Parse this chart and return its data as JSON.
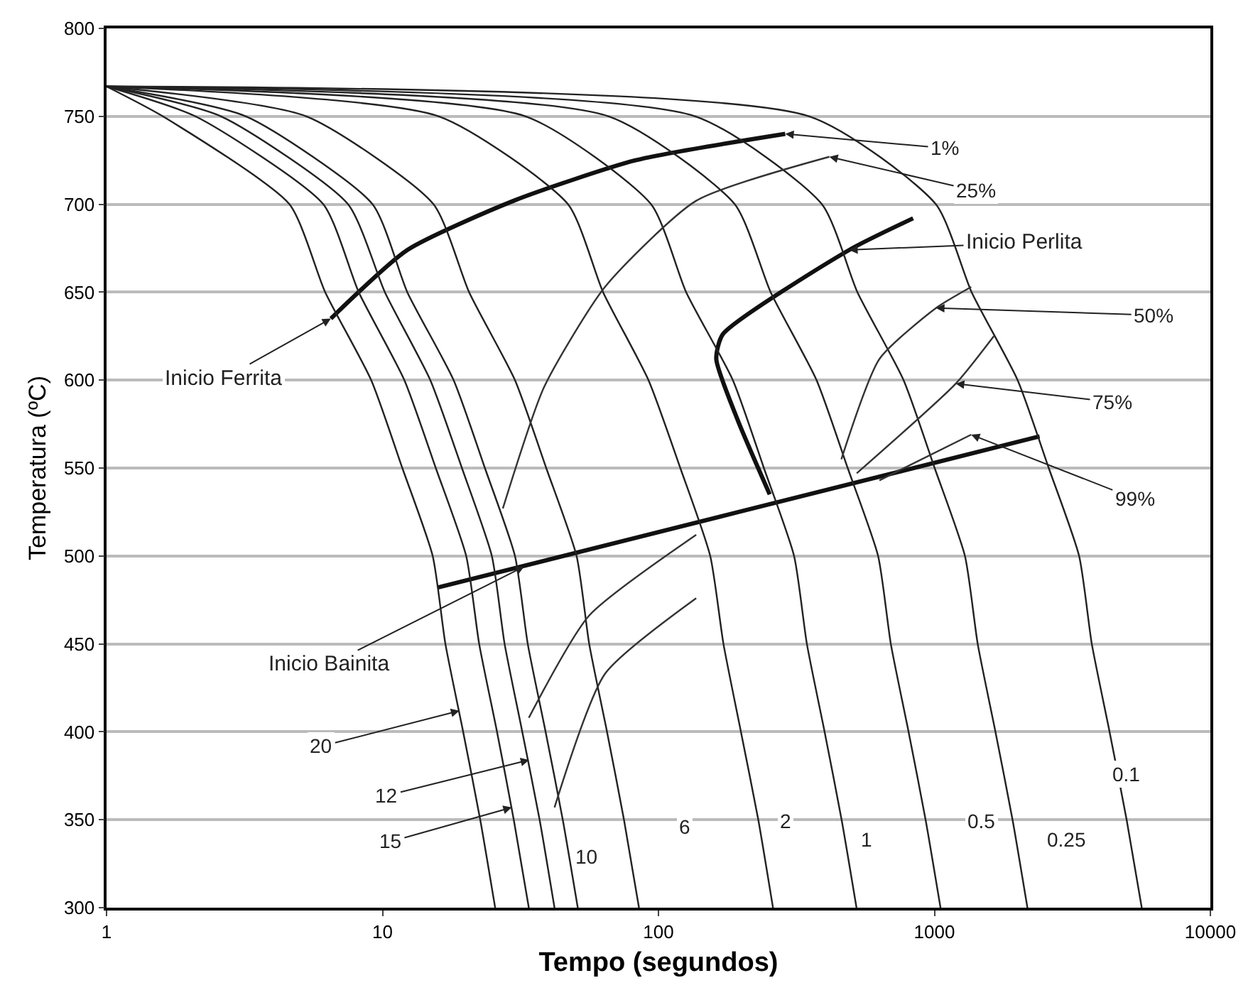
{
  "chart_data": {
    "type": "line",
    "xlabel": "Tempo (segundos)",
    "ylabel": "Temperatura (ºC)",
    "log": "x",
    "xlim": [
      1,
      10000
    ],
    "xticks": [
      1,
      10,
      100,
      1000,
      10000
    ],
    "ylim": [
      300,
      800
    ],
    "yticks": [
      300,
      350,
      400,
      450,
      500,
      550,
      600,
      650,
      700,
      750,
      800
    ],
    "grid": "y",
    "marker": "none",
    "line_style": "solid",
    "series": [
      {
        "color": "#111111",
        "x": [
          6.5,
          12.3,
          29.9,
          82.6,
          288
        ],
        "values": [
          635,
          674,
          702,
          725,
          740
        ]
      },
      {
        "color": "#111111",
        "x": [
          837,
          491,
          171,
          162,
          194,
          253
        ],
        "values": [
          692,
          674,
          626,
          612,
          577,
          535
        ]
      },
      {
        "color": "#111111",
        "x": [
          15.8,
          195,
          2405
        ],
        "values": [
          482,
          525,
          568
        ]
      },
      {
        "color": "#222222",
        "x": [
          1,
          1.6,
          4.6,
          6.2,
          9.1,
          11.8,
          15.2,
          16.9,
          19.6,
          22.6,
          25.6
        ],
        "values": [
          767,
          750,
          700,
          650,
          600,
          550,
          500,
          450,
          400,
          350,
          300
        ]
      },
      {
        "color": "#222222",
        "x": [
          1,
          2.1,
          6.1,
          8.2,
          12.0,
          15.6,
          20.1,
          22.4,
          26.0,
          29.9,
          33.9
        ],
        "values": [
          767,
          750,
          700,
          650,
          600,
          550,
          500,
          450,
          400,
          350,
          300
        ]
      },
      {
        "color": "#222222",
        "x": [
          1,
          2.6,
          7.5,
          10.2,
          14.9,
          19.4,
          24.9,
          27.7,
          32.1,
          37.1,
          42
        ],
        "values": [
          767,
          750,
          700,
          650,
          600,
          550,
          500,
          450,
          400,
          350,
          300
        ]
      },
      {
        "color": "#222222",
        "x": [
          1,
          3.2,
          9.2,
          12.3,
          18.1,
          23.5,
          30.2,
          33.6,
          39.0,
          45.0,
          51
        ],
        "values": [
          767,
          750,
          700,
          650,
          600,
          550,
          500,
          450,
          400,
          350,
          300
        ]
      },
      {
        "color": "#222222",
        "x": [
          1,
          5.3,
          15.3,
          20.6,
          30.2,
          39.2,
          50.5,
          56.1,
          65.1,
          75.0,
          85
        ],
        "values": [
          767,
          750,
          700,
          650,
          600,
          550,
          500,
          450,
          400,
          350,
          300
        ]
      },
      {
        "color": "#222222",
        "x": [
          1,
          16,
          47,
          63,
          92,
          120,
          154,
          172,
          199,
          230,
          260
        ],
        "values": [
          767,
          750,
          700,
          650,
          600,
          550,
          500,
          450,
          400,
          350,
          300
        ]
      },
      {
        "color": "#222222",
        "x": [
          1,
          33,
          94,
          126,
          186,
          241,
          310,
          345,
          400,
          461,
          522
        ],
        "values": [
          767,
          750,
          700,
          650,
          600,
          550,
          500,
          450,
          400,
          350,
          300
        ]
      },
      {
        "color": "#222222",
        "x": [
          1,
          66,
          189,
          255,
          374,
          485,
          625,
          695,
          806,
          929,
          1052
        ],
        "values": [
          767,
          750,
          700,
          650,
          600,
          550,
          500,
          450,
          400,
          350,
          300
        ]
      },
      {
        "color": "#222222",
        "x": [
          1,
          136,
          391,
          526,
          773,
          1002,
          1290,
          1435,
          1664,
          1919,
          2173
        ],
        "values": [
          767,
          750,
          700,
          650,
          600,
          550,
          500,
          450,
          400,
          350,
          300
        ]
      },
      {
        "color": "#222222",
        "x": [
          1,
          352,
          1012,
          1364,
          2002,
          2596,
          3344,
          3718,
          4312,
          4972,
          5640
        ],
        "values": [
          767,
          750,
          700,
          650,
          600,
          550,
          500,
          450,
          400,
          350,
          300
        ]
      },
      {
        "color": "#333333",
        "x": [
          27.3,
          38.5,
          64,
          137,
          416
        ],
        "values": [
          527,
          596,
          653,
          702,
          727
        ]
      },
      {
        "color": "#333333",
        "x": [
          460,
          632,
          1013,
          1359
        ],
        "values": [
          555,
          612,
          641,
          653
        ]
      },
      {
        "color": "#333333",
        "x": [
          523,
          1195,
          1642
        ],
        "values": [
          547,
          598,
          625
        ]
      },
      {
        "color": "#333333",
        "x": [
          632,
          1359
        ],
        "values": [
          543,
          569
        ]
      },
      {
        "color": "#333333",
        "x": [
          33.9,
          56,
          137
        ],
        "values": [
          408,
          466,
          512
        ]
      },
      {
        "color": "#333333",
        "x": [
          42,
          64,
          137
        ],
        "values": [
          357,
          433,
          476
        ]
      }
    ],
    "annotations": [
      {
        "text": "Inicio Ferrita",
        "x": 6.5,
        "y": 635
      },
      {
        "text": "1%",
        "x": 288,
        "y": 740
      },
      {
        "text": "25%",
        "x": 416,
        "y": 727
      },
      {
        "text": "Inicio Perlita",
        "x": 491,
        "y": 674
      },
      {
        "text": "50%",
        "x": 1013,
        "y": 641
      },
      {
        "text": "75%",
        "x": 1195,
        "y": 598
      },
      {
        "text": "99%",
        "x": 1359,
        "y": 569
      },
      {
        "text": "Inicio Bainita",
        "x": 32.6,
        "y": 494
      },
      {
        "text": "20",
        "x": 19.0,
        "y": 412
      },
      {
        "text": "12",
        "x": 34,
        "y": 384
      },
      {
        "text": "15",
        "x": 29.4,
        "y": 357
      },
      {
        "text": "10",
        "x": 55,
        "y": 329
      },
      {
        "text": "6",
        "x": 124,
        "y": 346
      },
      {
        "text": "2",
        "x": 288,
        "y": 349
      },
      {
        "text": "1",
        "x": 571,
        "y": 339
      },
      {
        "text": "0.5",
        "x": 1483,
        "y": 349
      },
      {
        "text": "0.25",
        "x": 2985,
        "y": 339
      },
      {
        "text": "0.1",
        "x": 4966,
        "y": 376
      }
    ]
  }
}
